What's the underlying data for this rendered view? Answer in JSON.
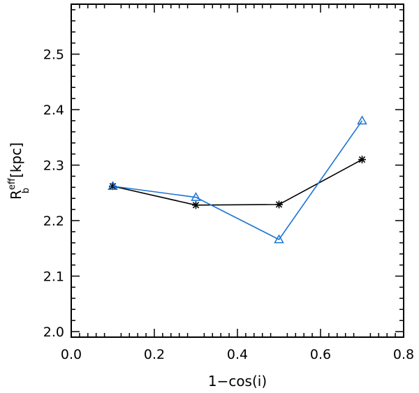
{
  "chart_data": {
    "type": "line",
    "title": "",
    "xlabel": "1−cos(i)",
    "ylabel": {
      "base": "R",
      "superscript": "eff",
      "subscript": "b",
      "unit": "[kpc]"
    },
    "xlim": [
      0.0,
      0.8
    ],
    "ylim": [
      1.99,
      2.59
    ],
    "x_ticks": [
      0.0,
      0.2,
      0.4,
      0.6,
      0.8
    ],
    "x_tick_labels": [
      "0.0",
      "0.2",
      "0.4",
      "0.6",
      "0.8"
    ],
    "y_ticks": [
      2.0,
      2.1,
      2.2,
      2.3,
      2.4,
      2.5
    ],
    "y_tick_labels": [
      "2.0",
      "2.1",
      "2.2",
      "2.3",
      "2.4",
      "2.5"
    ],
    "grid": false,
    "series": [
      {
        "name": "black asterisks",
        "color": "#000000",
        "marker": "asterisk",
        "x": [
          0.1,
          0.3,
          0.5,
          0.7
        ],
        "y": [
          2.262,
          2.228,
          2.229,
          2.31
        ]
      },
      {
        "name": "blue triangles",
        "color": "#1a73d6",
        "marker": "triangle",
        "x": [
          0.1,
          0.3,
          0.5,
          0.7
        ],
        "y": [
          2.262,
          2.242,
          2.166,
          2.38
        ]
      }
    ]
  }
}
